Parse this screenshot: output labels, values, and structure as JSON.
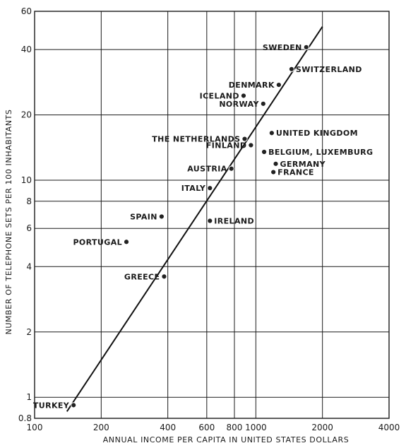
{
  "chart_data": {
    "type": "scatter",
    "xlabel": "ANNUAL INCOME PER CAPITA IN UNITED STATES DOLLARS",
    "ylabel": "NUMBER OF TELEPHONE SETS PER 100 INHABITANTS",
    "x_scale": "log",
    "y_scale": "log",
    "xlim": [
      100,
      4000
    ],
    "ylim": [
      0.8,
      60
    ],
    "grid": true,
    "x_ticks": [
      {
        "value": 100,
        "label": "100"
      },
      {
        "value": 200,
        "label": "200"
      },
      {
        "value": 400,
        "label": "400"
      },
      {
        "value": 600,
        "label": "600"
      },
      {
        "value": 800,
        "label": "800"
      },
      {
        "value": 1000,
        "label": "1000"
      },
      {
        "value": 2000,
        "label": "2000"
      },
      {
        "value": 4000,
        "label": "4000"
      }
    ],
    "y_ticks": [
      {
        "value": 0.8,
        "label": "0.8"
      },
      {
        "value": 1,
        "label": "1"
      },
      {
        "value": 2,
        "label": "2"
      },
      {
        "value": 4,
        "label": "4"
      },
      {
        "value": 6,
        "label": "6"
      },
      {
        "value": 8,
        "label": "8"
      },
      {
        "value": 10,
        "label": "10"
      },
      {
        "value": 20,
        "label": "20"
      },
      {
        "value": 40,
        "label": "40"
      },
      {
        "value": 60,
        "label": "60"
      }
    ],
    "points": [
      {
        "label": "SWEDEN",
        "x": 1690,
        "y": 41,
        "label_pos": "left"
      },
      {
        "label": "SWITZERLAND",
        "x": 1450,
        "y": 32.5,
        "label_pos": "right"
      },
      {
        "label": "DENMARK",
        "x": 1270,
        "y": 27.5,
        "label_pos": "left"
      },
      {
        "label": "ICELAND",
        "x": 880,
        "y": 24.5,
        "label_pos": "left"
      },
      {
        "label": "NORWAY",
        "x": 1080,
        "y": 22.5,
        "label_pos": "left"
      },
      {
        "label": "THE NETHERLANDS",
        "x": 890,
        "y": 15.5,
        "label_pos": "left"
      },
      {
        "label": "UNITED KINGDOM",
        "x": 1180,
        "y": 16.5,
        "label_pos": "right"
      },
      {
        "label": "FINLAND",
        "x": 950,
        "y": 14.5,
        "label_pos": "left"
      },
      {
        "label": "BELGIUM, LUXEMBURG",
        "x": 1090,
        "y": 13.5,
        "label_pos": "right"
      },
      {
        "label": "GERMANY",
        "x": 1230,
        "y": 11.9,
        "label_pos": "right"
      },
      {
        "label": "AUSTRIA",
        "x": 775,
        "y": 11.3,
        "label_pos": "left"
      },
      {
        "label": "FRANCE",
        "x": 1200,
        "y": 10.9,
        "label_pos": "right"
      },
      {
        "label": "ITALY",
        "x": 620,
        "y": 9.2,
        "label_pos": "left"
      },
      {
        "label": "SPAIN",
        "x": 375,
        "y": 6.8,
        "label_pos": "left"
      },
      {
        "label": "IRELAND",
        "x": 620,
        "y": 6.5,
        "label_pos": "right"
      },
      {
        "label": "PORTUGAL",
        "x": 260,
        "y": 5.2,
        "label_pos": "left"
      },
      {
        "label": "GREECE",
        "x": 385,
        "y": 3.6,
        "label_pos": "left"
      },
      {
        "label": "TURKEY",
        "x": 150,
        "y": 0.92,
        "label_pos": "left"
      }
    ],
    "trend_line": {
      "x": [
        140,
        2000
      ],
      "y": [
        0.86,
        51
      ]
    }
  }
}
